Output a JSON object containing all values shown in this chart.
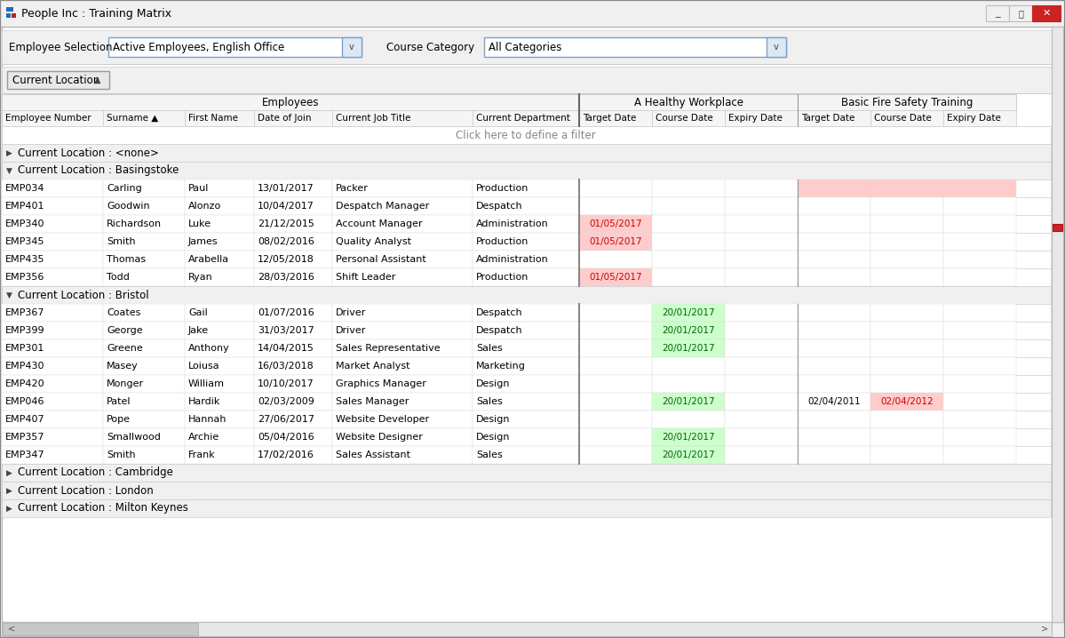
{
  "title": "People Inc : Training Matrix",
  "employee_selection_label": "Employee Selection",
  "employee_selection_value": "Active Employees, English Office",
  "course_category_label": "Course Category",
  "course_category_value": "All Categories",
  "sort_btn_label": "Current Location",
  "col_headers_course1": "A Healthy Workplace",
  "col_headers_course2": "Basic Fire Safety Training",
  "filter_row_text": "Click here to define a filter",
  "sections": [
    {
      "label": "Current Location : <none>",
      "collapsed": true,
      "rows": []
    },
    {
      "label": "Current Location : Basingstoke",
      "collapsed": false,
      "rows": [
        {
          "emp": "EMP034",
          "surname": "Carling",
          "first": "Paul",
          "doj": "13/01/2017",
          "job": "Packer",
          "dept": "Production",
          "ahw_target": "",
          "ahw_course": "",
          "ahw_expiry": "",
          "bfst_target": "",
          "bfst_course": "",
          "bfst_expiry": "",
          "ahw_target_bg": "#ffffff",
          "ahw_course_bg": "#ffffff",
          "ahw_expiry_bg": "#ffffff",
          "bfst_target_bg": "#ffcccc",
          "bfst_course_bg": "#ffcccc",
          "bfst_expiry_bg": "#ffcccc"
        },
        {
          "emp": "EMP401",
          "surname": "Goodwin",
          "first": "Alonzo",
          "doj": "10/04/2017",
          "job": "Despatch Manager",
          "dept": "Despatch",
          "ahw_target": "",
          "ahw_course": "",
          "ahw_expiry": "",
          "bfst_target": "",
          "bfst_course": "",
          "bfst_expiry": "",
          "ahw_target_bg": "#ffffff",
          "ahw_course_bg": "#ffffff",
          "ahw_expiry_bg": "#ffffff",
          "bfst_target_bg": "#ffffff",
          "bfst_course_bg": "#ffffff",
          "bfst_expiry_bg": "#ffffff"
        },
        {
          "emp": "EMP340",
          "surname": "Richardson",
          "first": "Luke",
          "doj": "21/12/2015",
          "job": "Account Manager",
          "dept": "Administration",
          "ahw_target": "01/05/2017",
          "ahw_course": "",
          "ahw_expiry": "",
          "bfst_target": "",
          "bfst_course": "",
          "bfst_expiry": "",
          "ahw_target_bg": "#ffcccc",
          "ahw_course_bg": "#ffffff",
          "ahw_expiry_bg": "#ffffff",
          "bfst_target_bg": "#ffffff",
          "bfst_course_bg": "#ffffff",
          "bfst_expiry_bg": "#ffffff"
        },
        {
          "emp": "EMP345",
          "surname": "Smith",
          "first": "James",
          "doj": "08/02/2016",
          "job": "Quality Analyst",
          "dept": "Production",
          "ahw_target": "01/05/2017",
          "ahw_course": "",
          "ahw_expiry": "",
          "bfst_target": "",
          "bfst_course": "",
          "bfst_expiry": "",
          "ahw_target_bg": "#ffcccc",
          "ahw_course_bg": "#ffffff",
          "ahw_expiry_bg": "#ffffff",
          "bfst_target_bg": "#ffffff",
          "bfst_course_bg": "#ffffff",
          "bfst_expiry_bg": "#ffffff"
        },
        {
          "emp": "EMP435",
          "surname": "Thomas",
          "first": "Arabella",
          "doj": "12/05/2018",
          "job": "Personal Assistant",
          "dept": "Administration",
          "ahw_target": "",
          "ahw_course": "",
          "ahw_expiry": "",
          "bfst_target": "",
          "bfst_course": "",
          "bfst_expiry": "",
          "ahw_target_bg": "#ffffff",
          "ahw_course_bg": "#ffffff",
          "ahw_expiry_bg": "#ffffff",
          "bfst_target_bg": "#ffffff",
          "bfst_course_bg": "#ffffff",
          "bfst_expiry_bg": "#ffffff"
        },
        {
          "emp": "EMP356",
          "surname": "Todd",
          "first": "Ryan",
          "doj": "28/03/2016",
          "job": "Shift Leader",
          "dept": "Production",
          "ahw_target": "01/05/2017",
          "ahw_course": "",
          "ahw_expiry": "",
          "bfst_target": "",
          "bfst_course": "",
          "bfst_expiry": "",
          "ahw_target_bg": "#ffcccc",
          "ahw_course_bg": "#ffffff",
          "ahw_expiry_bg": "#ffffff",
          "bfst_target_bg": "#ffffff",
          "bfst_course_bg": "#ffffff",
          "bfst_expiry_bg": "#ffffff"
        }
      ]
    },
    {
      "label": "Current Location : Bristol",
      "collapsed": false,
      "rows": [
        {
          "emp": "EMP367",
          "surname": "Coates",
          "first": "Gail",
          "doj": "01/07/2016",
          "job": "Driver",
          "dept": "Despatch",
          "ahw_target": "",
          "ahw_course": "20/01/2017",
          "ahw_expiry": "",
          "bfst_target": "",
          "bfst_course": "",
          "bfst_expiry": "",
          "ahw_target_bg": "#ffffff",
          "ahw_course_bg": "#ccffcc",
          "ahw_expiry_bg": "#ffffff",
          "bfst_target_bg": "#ffffff",
          "bfst_course_bg": "#ffffff",
          "bfst_expiry_bg": "#ffffff"
        },
        {
          "emp": "EMP399",
          "surname": "George",
          "first": "Jake",
          "doj": "31/03/2017",
          "job": "Driver",
          "dept": "Despatch",
          "ahw_target": "",
          "ahw_course": "20/01/2017",
          "ahw_expiry": "",
          "bfst_target": "",
          "bfst_course": "",
          "bfst_expiry": "",
          "ahw_target_bg": "#ffffff",
          "ahw_course_bg": "#ccffcc",
          "ahw_expiry_bg": "#ffffff",
          "bfst_target_bg": "#ffffff",
          "bfst_course_bg": "#ffffff",
          "bfst_expiry_bg": "#ffffff"
        },
        {
          "emp": "EMP301",
          "surname": "Greene",
          "first": "Anthony",
          "doj": "14/04/2015",
          "job": "Sales Representative",
          "dept": "Sales",
          "ahw_target": "",
          "ahw_course": "20/01/2017",
          "ahw_expiry": "",
          "bfst_target": "",
          "bfst_course": "",
          "bfst_expiry": "",
          "ahw_target_bg": "#ffffff",
          "ahw_course_bg": "#ccffcc",
          "ahw_expiry_bg": "#ffffff",
          "bfst_target_bg": "#ffffff",
          "bfst_course_bg": "#ffffff",
          "bfst_expiry_bg": "#ffffff"
        },
        {
          "emp": "EMP430",
          "surname": "Masey",
          "first": "Loiusa",
          "doj": "16/03/2018",
          "job": "Market Analyst",
          "dept": "Marketing",
          "ahw_target": "",
          "ahw_course": "",
          "ahw_expiry": "",
          "bfst_target": "",
          "bfst_course": "",
          "bfst_expiry": "",
          "ahw_target_bg": "#ffffff",
          "ahw_course_bg": "#ffffff",
          "ahw_expiry_bg": "#ffffff",
          "bfst_target_bg": "#ffffff",
          "bfst_course_bg": "#ffffff",
          "bfst_expiry_bg": "#ffffff"
        },
        {
          "emp": "EMP420",
          "surname": "Monger",
          "first": "William",
          "doj": "10/10/2017",
          "job": "Graphics Manager",
          "dept": "Design",
          "ahw_target": "",
          "ahw_course": "",
          "ahw_expiry": "",
          "bfst_target": "",
          "bfst_course": "",
          "bfst_expiry": "",
          "ahw_target_bg": "#ffffff",
          "ahw_course_bg": "#ffffff",
          "ahw_expiry_bg": "#ffffff",
          "bfst_target_bg": "#ffffff",
          "bfst_course_bg": "#ffffff",
          "bfst_expiry_bg": "#ffffff"
        },
        {
          "emp": "EMP046",
          "surname": "Patel",
          "first": "Hardik",
          "doj": "02/03/2009",
          "job": "Sales Manager",
          "dept": "Sales",
          "ahw_target": "",
          "ahw_course": "20/01/2017",
          "ahw_expiry": "",
          "bfst_target": "02/04/2011",
          "bfst_course": "02/04/2012",
          "bfst_expiry": "",
          "ahw_target_bg": "#ffffff",
          "ahw_course_bg": "#ccffcc",
          "ahw_expiry_bg": "#ffffff",
          "bfst_target_bg": "#ffffff",
          "bfst_course_bg": "#ffcccc",
          "bfst_expiry_bg": "#ffffff"
        },
        {
          "emp": "EMP407",
          "surname": "Pope",
          "first": "Hannah",
          "doj": "27/06/2017",
          "job": "Website Developer",
          "dept": "Design",
          "ahw_target": "",
          "ahw_course": "",
          "ahw_expiry": "",
          "bfst_target": "",
          "bfst_course": "",
          "bfst_expiry": "",
          "ahw_target_bg": "#ffffff",
          "ahw_course_bg": "#ffffff",
          "ahw_expiry_bg": "#ffffff",
          "bfst_target_bg": "#ffffff",
          "bfst_course_bg": "#ffffff",
          "bfst_expiry_bg": "#ffffff"
        },
        {
          "emp": "EMP357",
          "surname": "Smallwood",
          "first": "Archie",
          "doj": "05/04/2016",
          "job": "Website Designer",
          "dept": "Design",
          "ahw_target": "",
          "ahw_course": "20/01/2017",
          "ahw_expiry": "",
          "bfst_target": "",
          "bfst_course": "",
          "bfst_expiry": "",
          "ahw_target_bg": "#ffffff",
          "ahw_course_bg": "#ccffcc",
          "ahw_expiry_bg": "#ffffff",
          "bfst_target_bg": "#ffffff",
          "bfst_course_bg": "#ffffff",
          "bfst_expiry_bg": "#ffffff"
        },
        {
          "emp": "EMP347",
          "surname": "Smith",
          "first": "Frank",
          "doj": "17/02/2016",
          "job": "Sales Assistant",
          "dept": "Sales",
          "ahw_target": "",
          "ahw_course": "20/01/2017",
          "ahw_expiry": "",
          "bfst_target": "",
          "bfst_course": "",
          "bfst_expiry": "",
          "ahw_target_bg": "#ffffff",
          "ahw_course_bg": "#ccffcc",
          "ahw_expiry_bg": "#ffffff",
          "bfst_target_bg": "#ffffff",
          "bfst_course_bg": "#ffffff",
          "bfst_expiry_bg": "#ffffff"
        }
      ]
    },
    {
      "label": "Current Location : Cambridge",
      "collapsed": true,
      "rows": []
    },
    {
      "label": "Current Location : London",
      "collapsed": true,
      "rows": []
    },
    {
      "label": "Current Location : Milton Keynes",
      "collapsed": true,
      "rows": []
    }
  ]
}
